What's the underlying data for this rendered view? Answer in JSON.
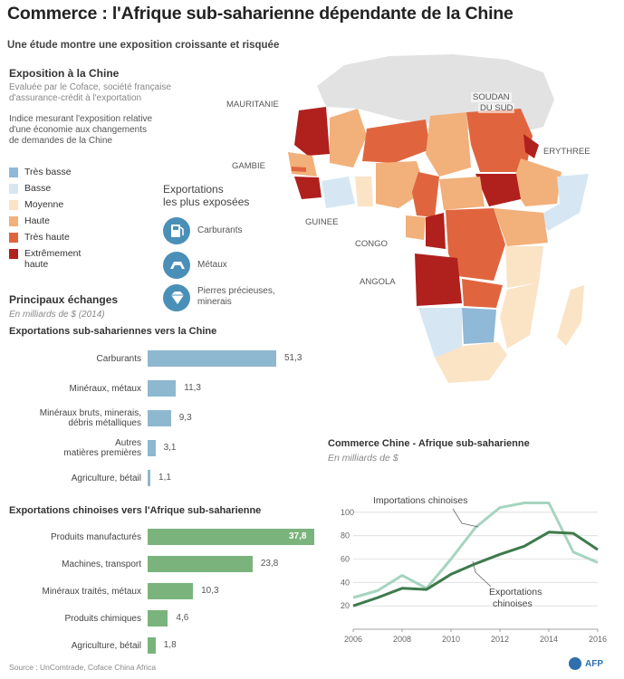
{
  "title": "Commerce : l'Afrique sub-saharienne dépendante de la Chine",
  "subtitle": "Une étude montre une exposition croissante et risquée",
  "map": {
    "heading": "Exposition à la Chine",
    "note1": "Evaluée par le Coface, société française",
    "note1b": "d'assurance-crédit à l'exportation",
    "note2": "Indice mesurant l'exposition relative",
    "note2b": "d'une économie aux changements",
    "note2c": "de demandes de la Chine",
    "legend": [
      {
        "label": "Très basse",
        "color": "#8fb9d6"
      },
      {
        "label": "Basse",
        "color": "#d6e7f3"
      },
      {
        "label": "Moyenne",
        "color": "#fbe3c6"
      },
      {
        "label": "Haute",
        "color": "#f2b07a"
      },
      {
        "label": "Très haute",
        "color": "#e0653e"
      },
      {
        "label": "Extrêmement",
        "label2": "haute",
        "color": "#b0201d"
      }
    ],
    "countries": {
      "mauritanie": "MAURITANIE",
      "soudan": "SOUDAN",
      "soudan2": "DU SUD",
      "gambie": "GAMBIE",
      "erythree": "ERYTHREE",
      "guinee": "GUINEE",
      "congo": "CONGO",
      "angola": "ANGOLA"
    },
    "exposed": {
      "heading": "Exportations",
      "heading2": "les plus exposées",
      "items": [
        {
          "label": "Carburants",
          "icon": "fuel-icon"
        },
        {
          "label": "Métaux",
          "icon": "metal-icon"
        },
        {
          "label": "Pierres précieuses,",
          "label2": "minerais",
          "icon": "gem-icon"
        }
      ]
    }
  },
  "exchanges": {
    "heading": "Principaux échanges",
    "unit": "En milliards de $ (2014)"
  },
  "chart_data": [
    {
      "type": "bar",
      "title": "Exportations sub-sahariennes vers la Chine",
      "color": "#8db8cf",
      "categories": [
        "Carburants",
        "Minéraux, métaux",
        "Minéraux bruts, minerais, débris métalliques",
        "Autres matières premières",
        "Agriculture, bétail"
      ],
      "label_lines": [
        [
          "Carburants"
        ],
        [
          "Minéraux, métaux"
        ],
        [
          "Minéraux bruts, minerais,",
          "débris métalliques"
        ],
        [
          "Autres",
          "matières premières"
        ],
        [
          "Agriculture, bétail"
        ]
      ],
      "values": [
        51.3,
        11.3,
        9.3,
        3.1,
        1.1
      ],
      "value_labels": [
        "51,3",
        "11,3",
        "9,3",
        "3,1",
        "1,1"
      ],
      "xlim": [
        0,
        51.3
      ]
    },
    {
      "type": "bar",
      "title": "Exportations chinoises vers l'Afrique sub-saharienne",
      "color": "#7ab47c",
      "categories": [
        "Produits manufacturés",
        "Machines, transport",
        "Minéraux traités, métaux",
        "Produits chimiques",
        "Agriculture, bétail"
      ],
      "label_lines": [
        [
          "Produits manufacturés"
        ],
        [
          "Machines, transport"
        ],
        [
          "Minéraux traités, métaux"
        ],
        [
          "Produits chimiques"
        ],
        [
          "Agriculture, bétail"
        ]
      ],
      "values": [
        37.8,
        23.8,
        10.3,
        4.6,
        1.8
      ],
      "value_labels": [
        "37,8",
        "23,8",
        "10,3",
        "4,6",
        "1,8"
      ],
      "xlim": [
        0,
        37.8
      ]
    },
    {
      "type": "line",
      "title": "Commerce Chine - Afrique sub-saharienne",
      "subtitle": "En milliards de $",
      "x": [
        2006,
        2007,
        2008,
        2009,
        2010,
        2011,
        2012,
        2013,
        2014,
        2015,
        2016
      ],
      "xticks": [
        "2006",
        "2008",
        "2010",
        "2012",
        "2014",
        "2016"
      ],
      "xlim": [
        2006,
        2016
      ],
      "ylim": [
        0,
        120
      ],
      "yticks": [
        20,
        40,
        60,
        80,
        100
      ],
      "series": [
        {
          "name": "Importations chinoises",
          "color": "#a6d4bf",
          "values": [
            27,
            33,
            46,
            35,
            60,
            87,
            104,
            108,
            108,
            66,
            57
          ]
        },
        {
          "name": "Exportations chinoises",
          "color": "#3e7a4c",
          "values": [
            20,
            27,
            35,
            34,
            47,
            56,
            64,
            71,
            83,
            82,
            68
          ]
        }
      ],
      "annotations": {
        "imports": "Importations chinoises",
        "exports1": "Exportations",
        "exports2": "chinoises"
      }
    }
  ],
  "footer": {
    "source": "Source : UnComtrade, Coface China Africa",
    "credit": "AFP"
  }
}
